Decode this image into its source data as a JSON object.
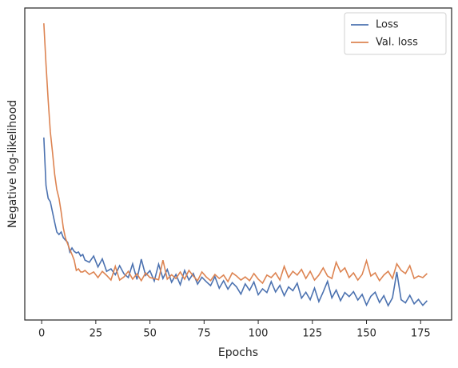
{
  "chart_data": {
    "type": "line",
    "x_label": "Epochs",
    "y_label": "Negative log-likelihood",
    "x": [
      1,
      2,
      3,
      4,
      5,
      6,
      7,
      8,
      9,
      10,
      11,
      12,
      13,
      14,
      15,
      16,
      17,
      18,
      19,
      20,
      22,
      24,
      26,
      28,
      30,
      32,
      34,
      36,
      38,
      40,
      42,
      44,
      46,
      48,
      50,
      52,
      54,
      56,
      58,
      60,
      62,
      64,
      66,
      68,
      70,
      72,
      74,
      76,
      78,
      80,
      82,
      84,
      86,
      88,
      90,
      92,
      94,
      96,
      98,
      100,
      102,
      104,
      106,
      108,
      110,
      112,
      114,
      116,
      118,
      120,
      122,
      124,
      126,
      128,
      130,
      132,
      134,
      136,
      138,
      140,
      142,
      144,
      146,
      148,
      150,
      152,
      154,
      156,
      158,
      160,
      162,
      164,
      166,
      168,
      170,
      172,
      174,
      176,
      178
    ],
    "series": [
      {
        "name": "Loss",
        "color": "#4c72b0",
        "values": [
          58.5,
          43.1,
          39,
          37.9,
          34.6,
          31.3,
          28.2,
          27.4,
          28.2,
          26.4,
          25.6,
          24.9,
          21.8,
          23.1,
          22,
          21.5,
          21.8,
          20.5,
          21,
          19.2,
          18.5,
          20.5,
          17,
          19.6,
          15.6,
          16.4,
          14.5,
          17.4,
          14.8,
          13.6,
          18,
          13,
          19.5,
          14.3,
          15.8,
          12.5,
          17.9,
          13.3,
          16.2,
          12.1,
          14.6,
          11.3,
          15.9,
          12.8,
          14.9,
          11.5,
          13.7,
          12.3,
          11,
          13.9,
          10.2,
          12.6,
          9.9,
          12,
          10.6,
          8.3,
          11.6,
          9.5,
          12.2,
          8.1,
          10,
          8.8,
          12.3,
          9,
          11.1,
          7.8,
          10.6,
          9.4,
          11.8,
          7,
          8.9,
          6.5,
          10.2,
          5.9,
          9,
          12.4,
          7.1,
          9.6,
          6.2,
          8.8,
          7.5,
          9.1,
          6.4,
          8.2,
          4.8,
          7.6,
          8.9,
          5.6,
          7.8,
          4.6,
          7.1,
          15.4,
          6.5,
          5.5,
          7.9,
          5.2,
          6.6,
          4.7,
          6.2
        ]
      },
      {
        "name": "Val. loss",
        "color": "#dd8452",
        "values": [
          95.1,
          82,
          70.5,
          60.3,
          53.8,
          46.7,
          41.8,
          39,
          34.6,
          29.5,
          26.2,
          24.4,
          22.6,
          21,
          19.2,
          15.9,
          16.4,
          15.4,
          15.4,
          15.9,
          14.6,
          15.4,
          13.6,
          15.6,
          14.3,
          12.8,
          17.2,
          12.8,
          13.8,
          15.6,
          13.1,
          14.8,
          12.6,
          15.1,
          13.6,
          13.3,
          12.9,
          19.2,
          13.1,
          14.5,
          13.3,
          15.4,
          13.1,
          15.9,
          14.1,
          12.6,
          15.4,
          13.8,
          12.6,
          14.6,
          13.3,
          14.4,
          12.3,
          15.1,
          14.1,
          12.8,
          13.8,
          12.6,
          14.9,
          13.1,
          11.8,
          14.4,
          13.6,
          15.1,
          12.8,
          17.2,
          13.6,
          15.6,
          14.4,
          16.2,
          13.3,
          15.6,
          12.8,
          14.4,
          16.7,
          14.1,
          13.3,
          18.5,
          15.4,
          16.7,
          13.6,
          15.1,
          12.8,
          14.6,
          19,
          14.1,
          15.1,
          12.6,
          14.4,
          15.6,
          13.3,
          18,
          15.9,
          14.9,
          17.4,
          13.3,
          14.1,
          13.6,
          14.9
        ]
      }
    ],
    "xlim": [
      -7.8,
      189.3
    ],
    "xticks": [
      0,
      25,
      50,
      75,
      100,
      125,
      150,
      175
    ],
    "ylim": [
      0,
      100
    ],
    "legend": "upper right"
  }
}
